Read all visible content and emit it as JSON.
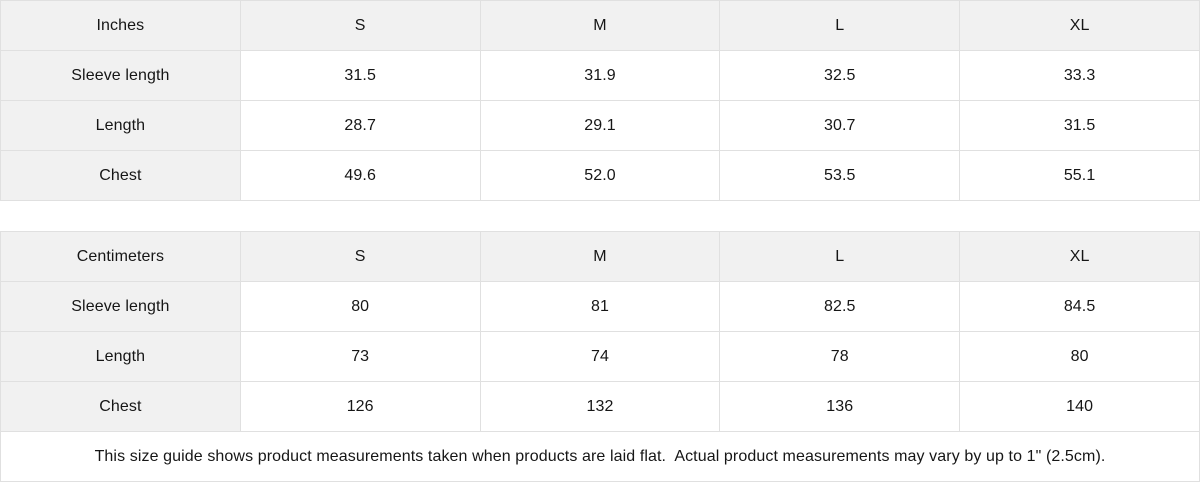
{
  "colors": {
    "header_bg": "#f1f1f1",
    "border": "#e0e0e0",
    "text": "#161616",
    "cell_bg": "#ffffff"
  },
  "size_guide": {
    "tables": [
      {
        "unit_label": "Inches",
        "sizes": [
          "S",
          "M",
          "L",
          "XL"
        ],
        "rows": [
          {
            "label": "Sleeve length",
            "values": [
              "31.5",
              "31.9",
              "32.5",
              "33.3"
            ]
          },
          {
            "label": "Length",
            "values": [
              "28.7",
              "29.1",
              "30.7",
              "31.5"
            ]
          },
          {
            "label": "Chest",
            "values": [
              "49.6",
              "52.0",
              "53.5",
              "55.1"
            ]
          }
        ]
      },
      {
        "unit_label": "Centimeters",
        "sizes": [
          "S",
          "M",
          "L",
          "XL"
        ],
        "rows": [
          {
            "label": "Sleeve length",
            "values": [
              "80",
              "81",
              "82.5",
              "84.5"
            ]
          },
          {
            "label": "Length",
            "values": [
              "73",
              "74",
              "78",
              "80"
            ]
          },
          {
            "label": "Chest",
            "values": [
              "126",
              "132",
              "136",
              "140"
            ]
          }
        ]
      }
    ],
    "footnote": "This size guide shows product measurements taken when products are laid flat.  Actual product measurements may vary by up to 1\" (2.5cm)."
  }
}
